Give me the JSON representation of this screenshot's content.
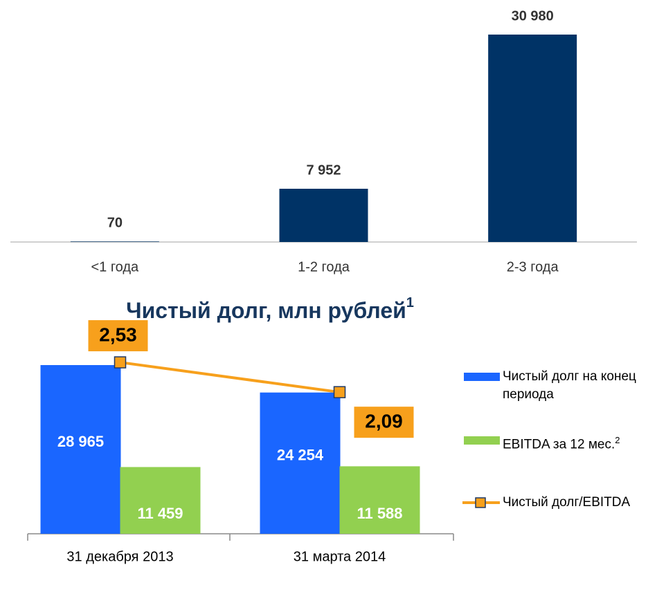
{
  "chart_data": [
    {
      "type": "bar",
      "categories": [
        "<1 года",
        "1-2 года",
        "2-3 года"
      ],
      "values": [
        70,
        7952,
        30980
      ],
      "value_labels": [
        "70",
        "7 952",
        "30 980"
      ],
      "color": "#003366"
    },
    {
      "type": "combo",
      "title": "Чистый долг, млн рублей",
      "title_note": "1",
      "categories": [
        "31 декабря 2013",
        "31 марта 2014"
      ],
      "series": [
        {
          "name": "Чистый долг на конец периода",
          "color": "#1a66ff",
          "values": [
            28965,
            24254
          ],
          "value_labels": [
            "28 965",
            "24 254"
          ]
        },
        {
          "name": "EBITDA за 12 мес.",
          "name_note": "2",
          "color": "#92d050",
          "values": [
            11459,
            11588
          ],
          "value_labels": [
            "11 459",
            "11 588"
          ]
        },
        {
          "name": "Чистый долг/EBITDA",
          "color": "#f7a01c",
          "values": [
            2.53,
            2.09
          ],
          "value_labels": [
            "2,53",
            "2,09"
          ],
          "axis": "y2"
        }
      ]
    }
  ]
}
